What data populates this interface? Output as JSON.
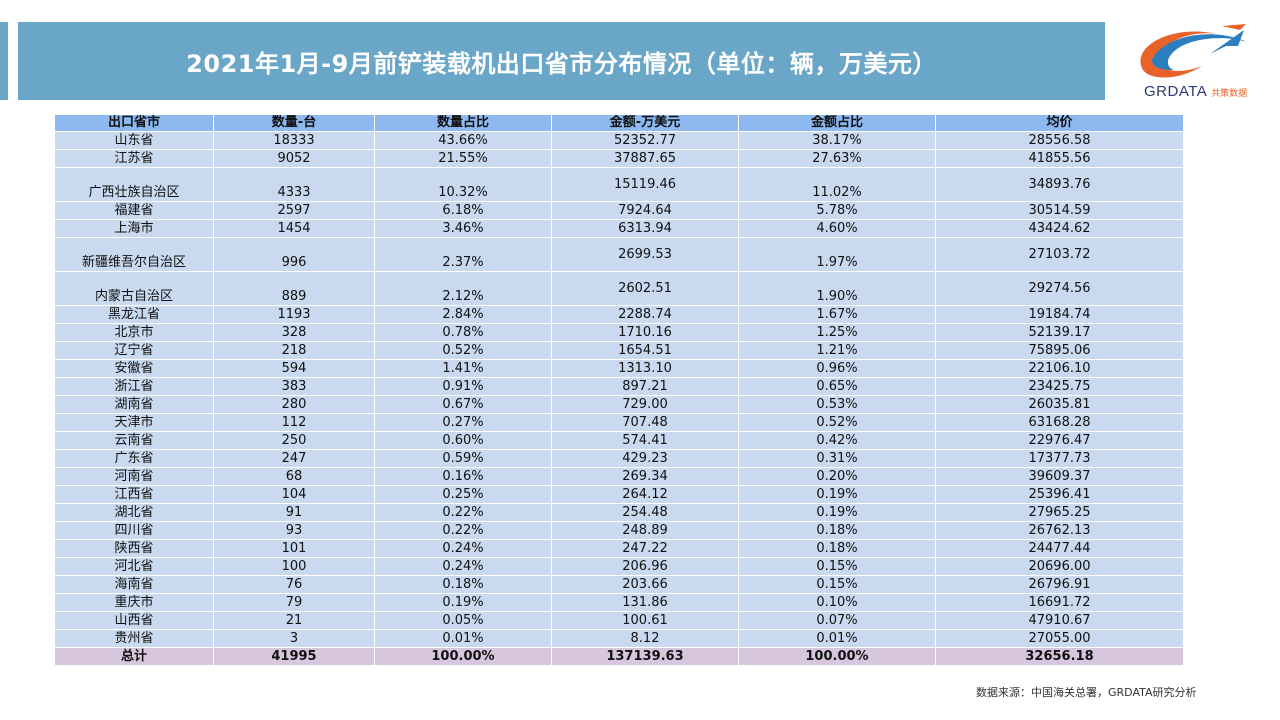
{
  "title": "2021年1月-9月前铲装载机出口省市分布情况（单位：辆，万美元）",
  "logo": {
    "text": "GRDATA",
    "sub": "共策数据"
  },
  "table": {
    "headers": [
      "出口省市",
      "数量-台",
      "数量占比",
      "金额-万美元",
      "金额占比",
      "均价"
    ],
    "rows": [
      {
        "prov": "山东省",
        "qty": "18333",
        "qty_pct": "43.66%",
        "amt": "52352.77",
        "amt_pct": "38.17%",
        "avg": "28556.58",
        "tall": false
      },
      {
        "prov": "江苏省",
        "qty": "9052",
        "qty_pct": "21.55%",
        "amt": "37887.65",
        "amt_pct": "27.63%",
        "avg": "41855.56",
        "tall": false
      },
      {
        "prov": "广西壮族自治区",
        "qty": "4333",
        "qty_pct": "10.32%",
        "amt": "15119.46",
        "amt_pct": "11.02%",
        "avg": "34893.76",
        "tall": true
      },
      {
        "prov": "福建省",
        "qty": "2597",
        "qty_pct": "6.18%",
        "amt": "7924.64",
        "amt_pct": "5.78%",
        "avg": "30514.59",
        "tall": false
      },
      {
        "prov": "上海市",
        "qty": "1454",
        "qty_pct": "3.46%",
        "amt": "6313.94",
        "amt_pct": "4.60%",
        "avg": "43424.62",
        "tall": false
      },
      {
        "prov": "新疆维吾尔自治区",
        "qty": "996",
        "qty_pct": "2.37%",
        "amt": "2699.53",
        "amt_pct": "1.97%",
        "avg": "27103.72",
        "tall": true
      },
      {
        "prov": "内蒙古自治区",
        "qty": "889",
        "qty_pct": "2.12%",
        "amt": "2602.51",
        "amt_pct": "1.90%",
        "avg": "29274.56",
        "tall": true
      },
      {
        "prov": "黑龙江省",
        "qty": "1193",
        "qty_pct": "2.84%",
        "amt": "2288.74",
        "amt_pct": "1.67%",
        "avg": "19184.74",
        "tall": false
      },
      {
        "prov": "北京市",
        "qty": "328",
        "qty_pct": "0.78%",
        "amt": "1710.16",
        "amt_pct": "1.25%",
        "avg": "52139.17",
        "tall": false
      },
      {
        "prov": "辽宁省",
        "qty": "218",
        "qty_pct": "0.52%",
        "amt": "1654.51",
        "amt_pct": "1.21%",
        "avg": "75895.06",
        "tall": false
      },
      {
        "prov": "安徽省",
        "qty": "594",
        "qty_pct": "1.41%",
        "amt": "1313.10",
        "amt_pct": "0.96%",
        "avg": "22106.10",
        "tall": false
      },
      {
        "prov": "浙江省",
        "qty": "383",
        "qty_pct": "0.91%",
        "amt": "897.21",
        "amt_pct": "0.65%",
        "avg": "23425.75",
        "tall": false
      },
      {
        "prov": "湖南省",
        "qty": "280",
        "qty_pct": "0.67%",
        "amt": "729.00",
        "amt_pct": "0.53%",
        "avg": "26035.81",
        "tall": false
      },
      {
        "prov": "天津市",
        "qty": "112",
        "qty_pct": "0.27%",
        "amt": "707.48",
        "amt_pct": "0.52%",
        "avg": "63168.28",
        "tall": false
      },
      {
        "prov": "云南省",
        "qty": "250",
        "qty_pct": "0.60%",
        "amt": "574.41",
        "amt_pct": "0.42%",
        "avg": "22976.47",
        "tall": false
      },
      {
        "prov": "广东省",
        "qty": "247",
        "qty_pct": "0.59%",
        "amt": "429.23",
        "amt_pct": "0.31%",
        "avg": "17377.73",
        "tall": false
      },
      {
        "prov": "河南省",
        "qty": "68",
        "qty_pct": "0.16%",
        "amt": "269.34",
        "amt_pct": "0.20%",
        "avg": "39609.37",
        "tall": false
      },
      {
        "prov": "江西省",
        "qty": "104",
        "qty_pct": "0.25%",
        "amt": "264.12",
        "amt_pct": "0.19%",
        "avg": "25396.41",
        "tall": false
      },
      {
        "prov": "湖北省",
        "qty": "91",
        "qty_pct": "0.22%",
        "amt": "254.48",
        "amt_pct": "0.19%",
        "avg": "27965.25",
        "tall": false
      },
      {
        "prov": "四川省",
        "qty": "93",
        "qty_pct": "0.22%",
        "amt": "248.89",
        "amt_pct": "0.18%",
        "avg": "26762.13",
        "tall": false
      },
      {
        "prov": "陕西省",
        "qty": "101",
        "qty_pct": "0.24%",
        "amt": "247.22",
        "amt_pct": "0.18%",
        "avg": "24477.44",
        "tall": false
      },
      {
        "prov": "河北省",
        "qty": "100",
        "qty_pct": "0.24%",
        "amt": "206.96",
        "amt_pct": "0.15%",
        "avg": "20696.00",
        "tall": false
      },
      {
        "prov": "海南省",
        "qty": "76",
        "qty_pct": "0.18%",
        "amt": "203.66",
        "amt_pct": "0.15%",
        "avg": "26796.91",
        "tall": false
      },
      {
        "prov": "重庆市",
        "qty": "79",
        "qty_pct": "0.19%",
        "amt": "131.86",
        "amt_pct": "0.10%",
        "avg": "16691.72",
        "tall": false
      },
      {
        "prov": "山西省",
        "qty": "21",
        "qty_pct": "0.05%",
        "amt": "100.61",
        "amt_pct": "0.07%",
        "avg": "47910.67",
        "tall": false
      },
      {
        "prov": "贵州省",
        "qty": "3",
        "qty_pct": "0.01%",
        "amt": "8.12",
        "amt_pct": "0.01%",
        "avg": "27055.00",
        "tall": false
      }
    ],
    "total": {
      "prov": "总计",
      "qty": "41995",
      "qty_pct": "100.00%",
      "amt": "137139.63",
      "amt_pct": "100.00%",
      "avg": "32656.18"
    }
  },
  "source": "数据来源：中国海关总署，GRDATA研究分析",
  "colors": {
    "title_bar": "#6aa6c8",
    "header": "#8db8f0",
    "row": "#c9daf0",
    "total": "#d7c6de"
  }
}
